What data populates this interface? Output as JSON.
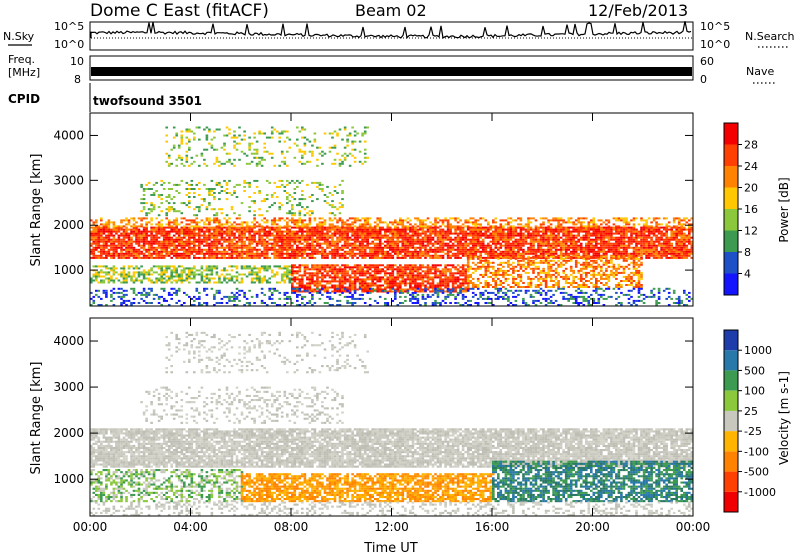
{
  "header": {
    "station": "Dome C East (fitACF)",
    "beam": "Beam 02",
    "date": "12/Feb/2013"
  },
  "top_panels": {
    "nsky": {
      "label": "N.Sky",
      "ymax_label": "10^5",
      "ymin_label": "10^0"
    },
    "nsearch": {
      "label": "N.Search",
      "ymax_label": "10^5",
      "ymin_label": "10^0"
    },
    "freq": {
      "label_line1": "Freq.",
      "label_line2": "[MHz]",
      "tick_top": "10",
      "tick_bottom": "8"
    },
    "nave": {
      "label": "Nave",
      "tick_top": "60",
      "tick_bottom": "0"
    },
    "cpid": {
      "label": "CPID",
      "value": "twofsound 3501"
    }
  },
  "chart_data": [
    {
      "type": "heatmap",
      "name": "power",
      "xlabel": "Time UT",
      "ylabel": "Slant Range [km]",
      "ylim": [
        200,
        4500
      ],
      "xlim": [
        0,
        24
      ],
      "x_ticks": [
        "00:00",
        "04:00",
        "08:00",
        "12:00",
        "16:00",
        "20:00",
        "00:00"
      ],
      "y_ticks": [
        "1000",
        "2000",
        "3000",
        "4000"
      ],
      "colorbar": {
        "label": "Power [dB]",
        "ticks": [
          "4",
          "8",
          "12",
          "16",
          "20",
          "24",
          "28"
        ],
        "colors": [
          "#1414ff",
          "#1e50c8",
          "#3c9b50",
          "#8cc83c",
          "#ffc800",
          "#ff8200",
          "#ff4000",
          "#f50000"
        ]
      },
      "bands": [
        {
          "t0": 0,
          "t1": 24,
          "r0": 1250,
          "r1": 1950,
          "level": "red",
          "density": 0.85
        },
        {
          "t0": 0,
          "t1": 24,
          "r0": 1950,
          "r1": 2150,
          "level": "orange",
          "density": 0.5
        },
        {
          "t0": 0,
          "t1": 8,
          "r0": 700,
          "r1": 1100,
          "level": "green",
          "density": 0.55
        },
        {
          "t0": 8,
          "t1": 15,
          "r0": 500,
          "r1": 1100,
          "level": "red",
          "density": 0.8
        },
        {
          "t0": 15,
          "t1": 22,
          "r0": 600,
          "r1": 1300,
          "level": "orange",
          "density": 0.55
        },
        {
          "t0": 0,
          "t1": 24,
          "r0": 200,
          "r1": 600,
          "level": "blue",
          "density": 0.3
        },
        {
          "t0": 2,
          "t1": 10,
          "r0": 2200,
          "r1": 3000,
          "level": "green",
          "density": 0.22
        },
        {
          "t0": 3,
          "t1": 11,
          "r0": 3300,
          "r1": 4200,
          "level": "green",
          "density": 0.18
        }
      ]
    },
    {
      "type": "heatmap",
      "name": "velocity",
      "xlabel": "Time UT",
      "ylabel": "Slant Range [km]",
      "ylim": [
        200,
        4500
      ],
      "xlim": [
        0,
        24
      ],
      "x_ticks": [
        "00:00",
        "04:00",
        "08:00",
        "12:00",
        "16:00",
        "20:00",
        "00:00"
      ],
      "y_ticks": [
        "1000",
        "2000",
        "3000",
        "4000"
      ],
      "colorbar": {
        "label": "Velocity [m s-1]",
        "ticks": [
          "1000",
          "500",
          "100",
          "25",
          "-25",
          "-100",
          "-500",
          "-1000"
        ],
        "colors": [
          "#1e3caa",
          "#2878aa",
          "#3c9b50",
          "#8cc83c",
          "#c8c8be",
          "#ffb400",
          "#ff8200",
          "#ff4000",
          "#f00000"
        ]
      },
      "bands": [
        {
          "t0": 0,
          "t1": 24,
          "r0": 1250,
          "r1": 2100,
          "level": "gray",
          "density": 0.85
        },
        {
          "t0": 0,
          "t1": 6,
          "r0": 500,
          "r1": 1200,
          "level": "green",
          "density": 0.5
        },
        {
          "t0": 6,
          "t1": 16,
          "r0": 500,
          "r1": 1100,
          "level": "orange",
          "density": 0.75
        },
        {
          "t0": 16,
          "t1": 24,
          "r0": 500,
          "r1": 1400,
          "level": "teal",
          "density": 0.7
        },
        {
          "t0": 2,
          "t1": 10,
          "r0": 2200,
          "r1": 3000,
          "level": "gray",
          "density": 0.22
        },
        {
          "t0": 3,
          "t1": 11,
          "r0": 3300,
          "r1": 4200,
          "level": "gray",
          "density": 0.18
        },
        {
          "t0": 0,
          "t1": 24,
          "r0": 200,
          "r1": 500,
          "level": "gray",
          "density": 0.3
        }
      ]
    }
  ]
}
